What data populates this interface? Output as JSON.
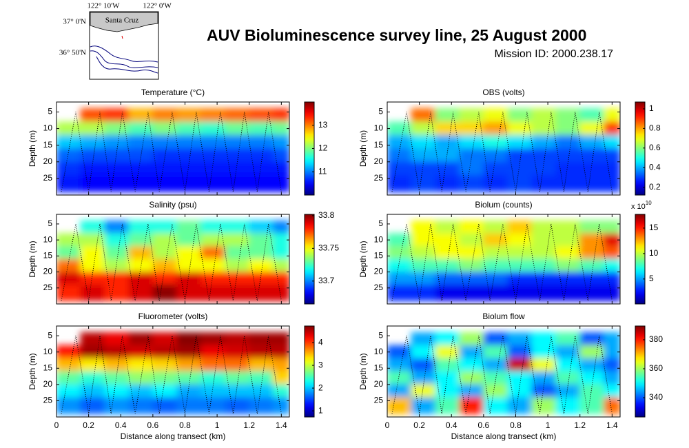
{
  "title": "AUV Bioluminescence survey line, 25 August 2000",
  "subtitle": "Mission ID: 2000.238.17",
  "map": {
    "xtick_labels": [
      "122° 10'W",
      "122° 0'W"
    ],
    "ytick_labels": [
      "37° 0'N",
      "36° 50'N"
    ],
    "place": "Santa Cruz"
  },
  "track": {
    "x": [
      0.03,
      0.12,
      0.2,
      0.27,
      0.34,
      0.41,
      0.49,
      0.57,
      0.64,
      0.72,
      0.8,
      0.87,
      0.95,
      1.02,
      1.1,
      1.17,
      1.25,
      1.32,
      1.4
    ],
    "depth": [
      29,
      5,
      29,
      5,
      29,
      5,
      29,
      5,
      29,
      5,
      29,
      5,
      29,
      5,
      29,
      5,
      29,
      5,
      29
    ]
  },
  "chart_data": [
    {
      "type": "heatmap",
      "title": "Temperature (°C)",
      "ylabel": "Depth (m)",
      "colormap": "jet",
      "xlim": [
        0,
        1.45
      ],
      "ylim": [
        2,
        30
      ],
      "xticks": [
        0,
        0.2,
        0.4,
        0.6,
        0.8,
        1,
        1.2,
        1.4
      ],
      "yticks": [
        5,
        10,
        15,
        20,
        25
      ],
      "xbins": [
        0,
        0.15,
        0.3,
        0.45,
        0.6,
        0.75,
        0.9,
        1.05,
        1.2,
        1.35,
        1.45
      ],
      "ybins": [
        4,
        8,
        12,
        16,
        20,
        24,
        29
      ],
      "z": [
        [
          null,
          13.2,
          13.3,
          12.8,
          13.0,
          12.9,
          13.0,
          13.1,
          13.2,
          13.3
        ],
        [
          12.2,
          12.2,
          12.0,
          11.8,
          12.0,
          11.8,
          11.7,
          11.9,
          11.8,
          11.9
        ],
        [
          11.3,
          11.2,
          11.1,
          11.0,
          11.0,
          11.0,
          11.0,
          11.0,
          11.0,
          11.1
        ],
        [
          10.9,
          10.8,
          10.8,
          10.8,
          10.7,
          10.7,
          10.7,
          10.7,
          10.7,
          10.8
        ],
        [
          10.7,
          10.6,
          10.6,
          10.6,
          10.6,
          10.6,
          10.6,
          10.6,
          10.6,
          10.6
        ],
        [
          10.6,
          10.5,
          10.5,
          10.5,
          10.5,
          10.5,
          10.5,
          10.5,
          10.5,
          10.5
        ]
      ],
      "clim": [
        10,
        14
      ],
      "cticks": [
        11,
        12,
        13
      ]
    },
    {
      "type": "heatmap",
      "title": "OBS (volts)",
      "ylabel": "Depth (m)",
      "colormap": "jet",
      "xlim": [
        0,
        1.45
      ],
      "ylim": [
        2,
        30
      ],
      "xticks": [
        0,
        0.2,
        0.4,
        0.6,
        0.8,
        1,
        1.2,
        1.4
      ],
      "yticks": [
        5,
        10,
        15,
        20,
        25
      ],
      "xbins": [
        0,
        0.15,
        0.3,
        0.45,
        0.6,
        0.75,
        0.9,
        1.05,
        1.2,
        1.35,
        1.45
      ],
      "ybins": [
        4,
        8,
        12,
        16,
        20,
        24,
        29
      ],
      "z": [
        [
          null,
          0.85,
          0.6,
          0.65,
          0.7,
          0.6,
          0.65,
          0.6,
          0.55,
          0.7
        ],
        [
          0.55,
          0.65,
          0.75,
          0.75,
          0.8,
          0.7,
          0.65,
          0.6,
          0.7,
          0.9
        ],
        [
          0.4,
          0.45,
          0.4,
          0.45,
          0.5,
          0.45,
          0.4,
          0.35,
          0.4,
          0.45
        ],
        [
          0.35,
          0.4,
          0.4,
          0.35,
          0.35,
          0.3,
          0.3,
          0.3,
          0.3,
          0.3
        ],
        [
          0.3,
          0.3,
          0.3,
          0.35,
          0.3,
          0.3,
          0.3,
          0.28,
          0.28,
          0.28
        ],
        [
          0.28,
          0.3,
          0.28,
          0.3,
          0.28,
          0.3,
          0.28,
          0.28,
          0.28,
          0.28
        ]
      ],
      "clim": [
        0.12,
        1.07
      ],
      "cticks": [
        0.2,
        0.4,
        0.6,
        0.8,
        1
      ]
    },
    {
      "type": "heatmap",
      "title": "Salinity (psu)",
      "ylabel": "Depth (m)",
      "colormap": "jet",
      "xlim": [
        0,
        1.45
      ],
      "ylim": [
        2,
        30
      ],
      "xticks": [
        0,
        0.2,
        0.4,
        0.6,
        0.8,
        1,
        1.2,
        1.4
      ],
      "yticks": [
        5,
        10,
        15,
        20,
        25
      ],
      "xbins": [
        0,
        0.15,
        0.3,
        0.45,
        0.6,
        0.75,
        0.9,
        1.05,
        1.2,
        1.35,
        1.45
      ],
      "ybins": [
        4,
        8,
        12,
        16,
        20,
        24,
        29
      ],
      "z": [
        [
          null,
          33.72,
          33.7,
          33.72,
          33.72,
          33.73,
          33.72,
          33.72,
          33.71,
          33.7
        ],
        [
          33.74,
          33.74,
          33.72,
          33.73,
          33.74,
          33.73,
          33.74,
          33.74,
          33.73,
          33.72
        ],
        [
          33.73,
          33.75,
          33.73,
          33.76,
          33.74,
          33.75,
          33.77,
          33.73,
          33.73,
          33.72
        ],
        [
          33.77,
          33.75,
          33.74,
          33.75,
          33.76,
          33.75,
          33.75,
          33.74,
          33.75,
          33.74
        ],
        [
          33.79,
          33.78,
          33.78,
          33.79,
          33.78,
          33.79,
          33.78,
          33.78,
          33.78,
          33.78
        ],
        [
          33.78,
          33.79,
          33.78,
          33.79,
          33.8,
          33.79,
          33.79,
          33.79,
          33.79,
          33.79
        ]
      ],
      "clim": [
        33.665,
        33.802
      ],
      "cticks": [
        33.7,
        33.75,
        33.8
      ]
    },
    {
      "type": "heatmap",
      "title": "Biolum (counts)",
      "ylabel": "Depth (m)",
      "colormap": "jet",
      "xlim": [
        0,
        1.45
      ],
      "ylim": [
        2,
        30
      ],
      "xticks": [
        0,
        0.2,
        0.4,
        0.6,
        0.8,
        1,
        1.2,
        1.4
      ],
      "yticks": [
        5,
        10,
        15,
        20,
        25
      ],
      "xbins": [
        0,
        0.15,
        0.3,
        0.45,
        0.6,
        0.75,
        0.9,
        1.05,
        1.2,
        1.35,
        1.45
      ],
      "ybins": [
        4,
        8,
        12,
        16,
        20,
        24,
        29
      ],
      "z": [
        [
          null,
          11,
          10,
          11,
          10,
          12,
          10,
          10,
          9,
          9
        ],
        [
          8,
          11,
          11,
          10,
          12,
          11,
          10,
          10,
          13,
          16
        ],
        [
          9,
          10,
          11,
          11,
          10,
          10,
          10,
          11,
          13,
          14
        ],
        [
          7,
          8,
          8,
          9,
          8,
          8,
          8,
          9,
          8,
          7
        ],
        [
          5,
          5,
          4,
          4,
          4,
          3,
          3,
          3,
          3,
          3
        ],
        [
          3,
          3,
          2,
          2,
          2,
          2,
          2,
          2,
          2,
          2
        ]
      ],
      "clim": [
        0.1,
        17.7
      ],
      "cticks": [
        5,
        10,
        15
      ],
      "colorbar_multiplier": {
        "base": "x 10",
        "exponent": "10"
      }
    },
    {
      "type": "heatmap",
      "title": "Fluorometer (volts)",
      "ylabel": "Depth (m)",
      "xlabel": "Distance along transect (km)",
      "colormap": "jet",
      "xlim": [
        0,
        1.45
      ],
      "ylim": [
        2,
        30
      ],
      "xticks": [
        0,
        0.2,
        0.4,
        0.6,
        0.8,
        1,
        1.2,
        1.4
      ],
      "yticks": [
        5,
        10,
        15,
        20,
        25
      ],
      "xbins": [
        0,
        0.15,
        0.3,
        0.45,
        0.6,
        0.75,
        0.9,
        1.05,
        1.2,
        1.35,
        1.45
      ],
      "ybins": [
        4,
        8,
        12,
        16,
        20,
        24,
        29
      ],
      "z": [
        [
          null,
          4.5,
          4.3,
          4.6,
          4.4,
          4.7,
          4.6,
          4.5,
          4.6,
          4.6
        ],
        [
          4.2,
          4.6,
          4.5,
          4.4,
          4.5,
          4.6,
          4.3,
          4.4,
          4.5,
          4.5
        ],
        [
          3.5,
          3.3,
          3.5,
          3.3,
          3.4,
          3.6,
          3.8,
          3.8,
          3.5,
          3.6
        ],
        [
          2.6,
          2.4,
          2.6,
          2.8,
          2.7,
          2.6,
          2.4,
          2.6,
          2.5,
          3.4
        ],
        [
          2.2,
          2.0,
          2.2,
          2.0,
          2.2,
          1.9,
          2.0,
          2.0,
          2.0,
          2.4
        ],
        [
          1.8,
          1.6,
          1.8,
          1.7,
          1.6,
          1.7,
          1.7,
          1.6,
          1.7,
          1.8
        ]
      ],
      "clim": [
        0.73,
        4.73
      ],
      "cticks": [
        1,
        2,
        3,
        4
      ]
    },
    {
      "type": "heatmap",
      "title": "Biolum flow",
      "ylabel": "Depth (m)",
      "xlabel": "Distance along transect (km)",
      "colormap": "jet",
      "xlim": [
        0,
        1.45
      ],
      "ylim": [
        2,
        30
      ],
      "xticks": [
        0,
        0.2,
        0.4,
        0.6,
        0.8,
        1,
        1.2,
        1.4
      ],
      "yticks": [
        5,
        10,
        15,
        20,
        25
      ],
      "xbins": [
        0,
        0.15,
        0.3,
        0.45,
        0.6,
        0.75,
        0.9,
        1.05,
        1.2,
        1.35,
        1.45
      ],
      "ybins": [
        4,
        8,
        12,
        16,
        20,
        24,
        29
      ],
      "z": [
        [
          null,
          345,
          350,
          360,
          340,
          345,
          350,
          355,
          340,
          345
        ],
        [
          340,
          350,
          365,
          345,
          355,
          340,
          350,
          345,
          360,
          345
        ],
        [
          345,
          340,
          355,
          350,
          345,
          385,
          365,
          350,
          345,
          340
        ],
        [
          355,
          345,
          350,
          360,
          355,
          350,
          345,
          355,
          350,
          345
        ],
        [
          345,
          365,
          350,
          345,
          360,
          350,
          340,
          345,
          355,
          350
        ],
        [
          370,
          345,
          355,
          380,
          350,
          345,
          360,
          350,
          355,
          375
        ]
      ],
      "clim": [
        326.7,
        389.5
      ],
      "cticks": [
        340,
        360,
        380
      ]
    }
  ]
}
